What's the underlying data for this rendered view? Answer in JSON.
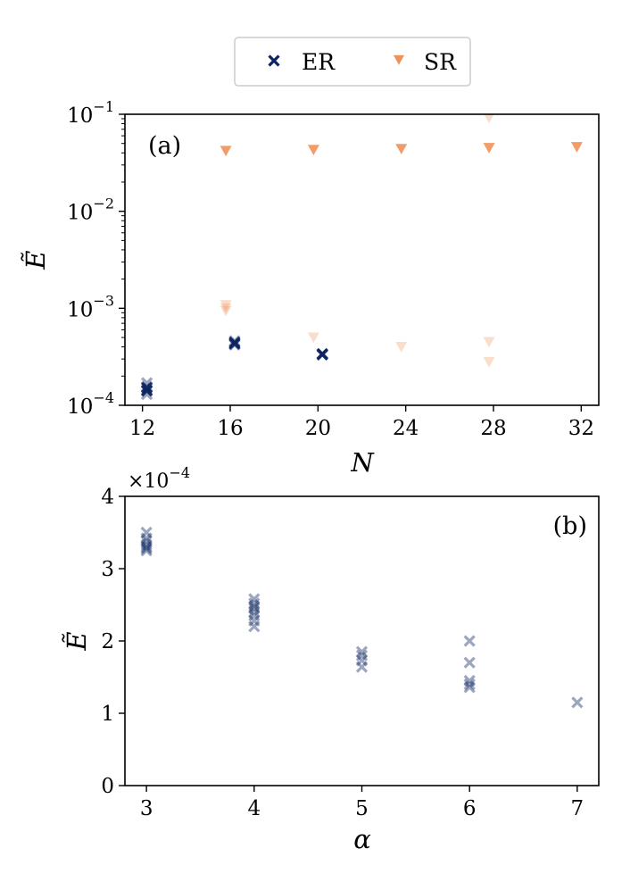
{
  "colors": {
    "er": "#0b2460",
    "sr": "#f0915a",
    "axis": "#000000",
    "legend_border": "#cccccc"
  },
  "legend": {
    "entries": [
      {
        "key": "er",
        "label": "ER",
        "marker": "x-marker"
      },
      {
        "key": "sr",
        "label": "SR",
        "marker": "triangle-down-marker"
      }
    ]
  },
  "chart_data": [
    {
      "id": "a",
      "type": "scatter",
      "panel_label": "(a)",
      "xlabel": "N",
      "ylabel": "Ẽ",
      "xscale": "linear",
      "yscale": "log",
      "xlim": [
        11.2,
        32.8
      ],
      "ylim": [
        0.0001,
        0.1
      ],
      "xticks": [
        12,
        16,
        20,
        24,
        28,
        32
      ],
      "xtick_labels": [
        "12",
        "16",
        "20",
        "24",
        "28",
        "32"
      ],
      "yticks": [
        0.0001,
        0.001,
        0.01,
        0.1
      ],
      "ytick_labels": [
        {
          "base": "10",
          "exp": "−4"
        },
        {
          "base": "10",
          "exp": "−3"
        },
        {
          "base": "10",
          "exp": "−2"
        },
        {
          "base": "10",
          "exp": "−1"
        }
      ],
      "series": [
        {
          "name": "ER",
          "marker": "x",
          "alpha": 0.4,
          "x": [
            12.2,
            12.2,
            12.2,
            12.2,
            12.2,
            16.2,
            16.2,
            20.2
          ],
          "y": [
            0.00017,
            0.000155,
            0.000145,
            0.00014,
            0.00013,
            0.00046,
            0.00042,
            0.00034
          ]
        },
        {
          "name": "ER",
          "marker": "x",
          "alpha": 0.9,
          "x": [
            12.2,
            12.2,
            16.2,
            16.2,
            20.2,
            20.2
          ],
          "y": [
            0.000152,
            0.000142,
            0.000445,
            0.00043,
            0.000338,
            0.000332
          ]
        },
        {
          "name": "SR",
          "marker": "v",
          "alpha": 0.3,
          "x": [
            15.8,
            15.8,
            15.8,
            19.8,
            23.8,
            27.8,
            27.8,
            27.8
          ],
          "y": [
            0.00108,
            0.001,
            0.00094,
            0.0005,
            0.0004,
            0.00045,
            0.00028,
            0.092
          ]
        },
        {
          "name": "SR",
          "marker": "v",
          "alpha": 0.9,
          "x": [
            15.8,
            19.8,
            23.8,
            27.8,
            31.8
          ],
          "y": [
            0.042,
            0.043,
            0.044,
            0.045,
            0.046
          ]
        }
      ]
    },
    {
      "id": "b",
      "type": "scatter",
      "panel_label": "(b)",
      "xlabel": "α",
      "ylabel": "Ẽ",
      "xscale": "linear",
      "yscale": "linear",
      "y_offset_label": {
        "prefix": "×10",
        "exp": "−4"
      },
      "xlim": [
        2.8,
        7.2
      ],
      "ylim": [
        0,
        4
      ],
      "xticks": [
        3,
        4,
        5,
        6,
        7
      ],
      "xtick_labels": [
        "3",
        "4",
        "5",
        "6",
        "7"
      ],
      "yticks": [
        0,
        1,
        2,
        3,
        4
      ],
      "ytick_labels": [
        "0",
        "1",
        "2",
        "3",
        "4"
      ],
      "series": [
        {
          "name": "ER",
          "marker": "x",
          "alpha": 0.4,
          "x": [
            3,
            3,
            3,
            3,
            3,
            3,
            3,
            4,
            4,
            4,
            4,
            4,
            4,
            4,
            4,
            5,
            5,
            5,
            5,
            6,
            6,
            6,
            6,
            6,
            7
          ],
          "y": [
            3.5,
            3.42,
            3.38,
            3.33,
            3.3,
            3.28,
            3.25,
            2.58,
            2.52,
            2.48,
            2.45,
            2.4,
            2.35,
            2.28,
            2.2,
            1.85,
            1.8,
            1.73,
            1.64,
            2.0,
            1.7,
            1.45,
            1.4,
            1.36,
            1.15
          ]
        }
      ]
    }
  ]
}
